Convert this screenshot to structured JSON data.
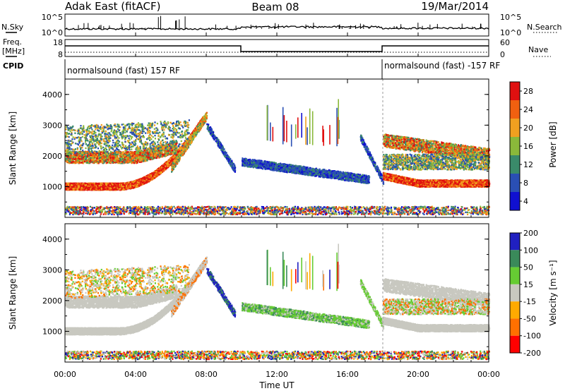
{
  "header": {
    "radar": "Adak East (fitACF)",
    "beam": "Beam 08",
    "date": "19/Mar/2014"
  },
  "top_panel": {
    "left_label_a": "N.Sky",
    "right_label_a": "N.Search",
    "tick_noise_top": "10^5",
    "tick_noise_bottom": "10^0",
    "left_label_b1": "Freq.",
    "left_label_b2": "[MHz]",
    "right_label_b": "Nave",
    "tick_freq_top": "18",
    "tick_freq_bottom": "8",
    "tick_nave_top": "60",
    "tick_nave_bottom": "0",
    "cpid_label": "CPID",
    "cpid_1": "normalsound (fast) 157 RF",
    "cpid_2": "normalsound (fast) -157 RF"
  },
  "colors": {
    "power": [
      "#1010d0",
      "#2a4fb4",
      "#3a8a6a",
      "#8ab83a",
      "#f0a020",
      "#f06010",
      "#e01010"
    ],
    "velocity": [
      "#ff0000",
      "#ff7000",
      "#ffaa00",
      "#c8c8c0",
      "#66cc33",
      "#3a8a5a",
      "#2020c0"
    ],
    "ground_scatter": "#c8c8c0"
  },
  "chart_data": [
    {
      "type": "heatmap",
      "name": "power",
      "ylabel": "Slant Range [km]",
      "colorbar_label": "Power [dB]",
      "colorbar_ticks": [
        "4",
        "8",
        "12",
        "16",
        "20",
        "24",
        "28"
      ],
      "y_ticks": [
        "1000",
        "2000",
        "3000",
        "4000"
      ],
      "x_ticks": [
        "00:00",
        "04:00",
        "08:00",
        "12:00",
        "16:00",
        "20:00",
        "00:00"
      ],
      "ylim": [
        0,
        4500
      ],
      "xlim_hours": [
        0,
        24
      ]
    },
    {
      "type": "heatmap",
      "name": "velocity",
      "ylabel": "Slant Range [km]",
      "colorbar_label": "Velocity [m s⁻¹]",
      "colorbar_ticks": [
        "200",
        "100",
        "50",
        "15",
        "-15",
        "-50",
        "-100",
        "-200"
      ],
      "y_ticks": [
        "1000",
        "2000",
        "3000",
        "4000"
      ],
      "x_ticks": [
        "00:00",
        "04:00",
        "08:00",
        "12:00",
        "16:00",
        "20:00",
        "00:00"
      ],
      "xlabel": "Time UT",
      "ylim": [
        0,
        4500
      ],
      "xlim_hours": [
        0,
        24
      ]
    }
  ]
}
